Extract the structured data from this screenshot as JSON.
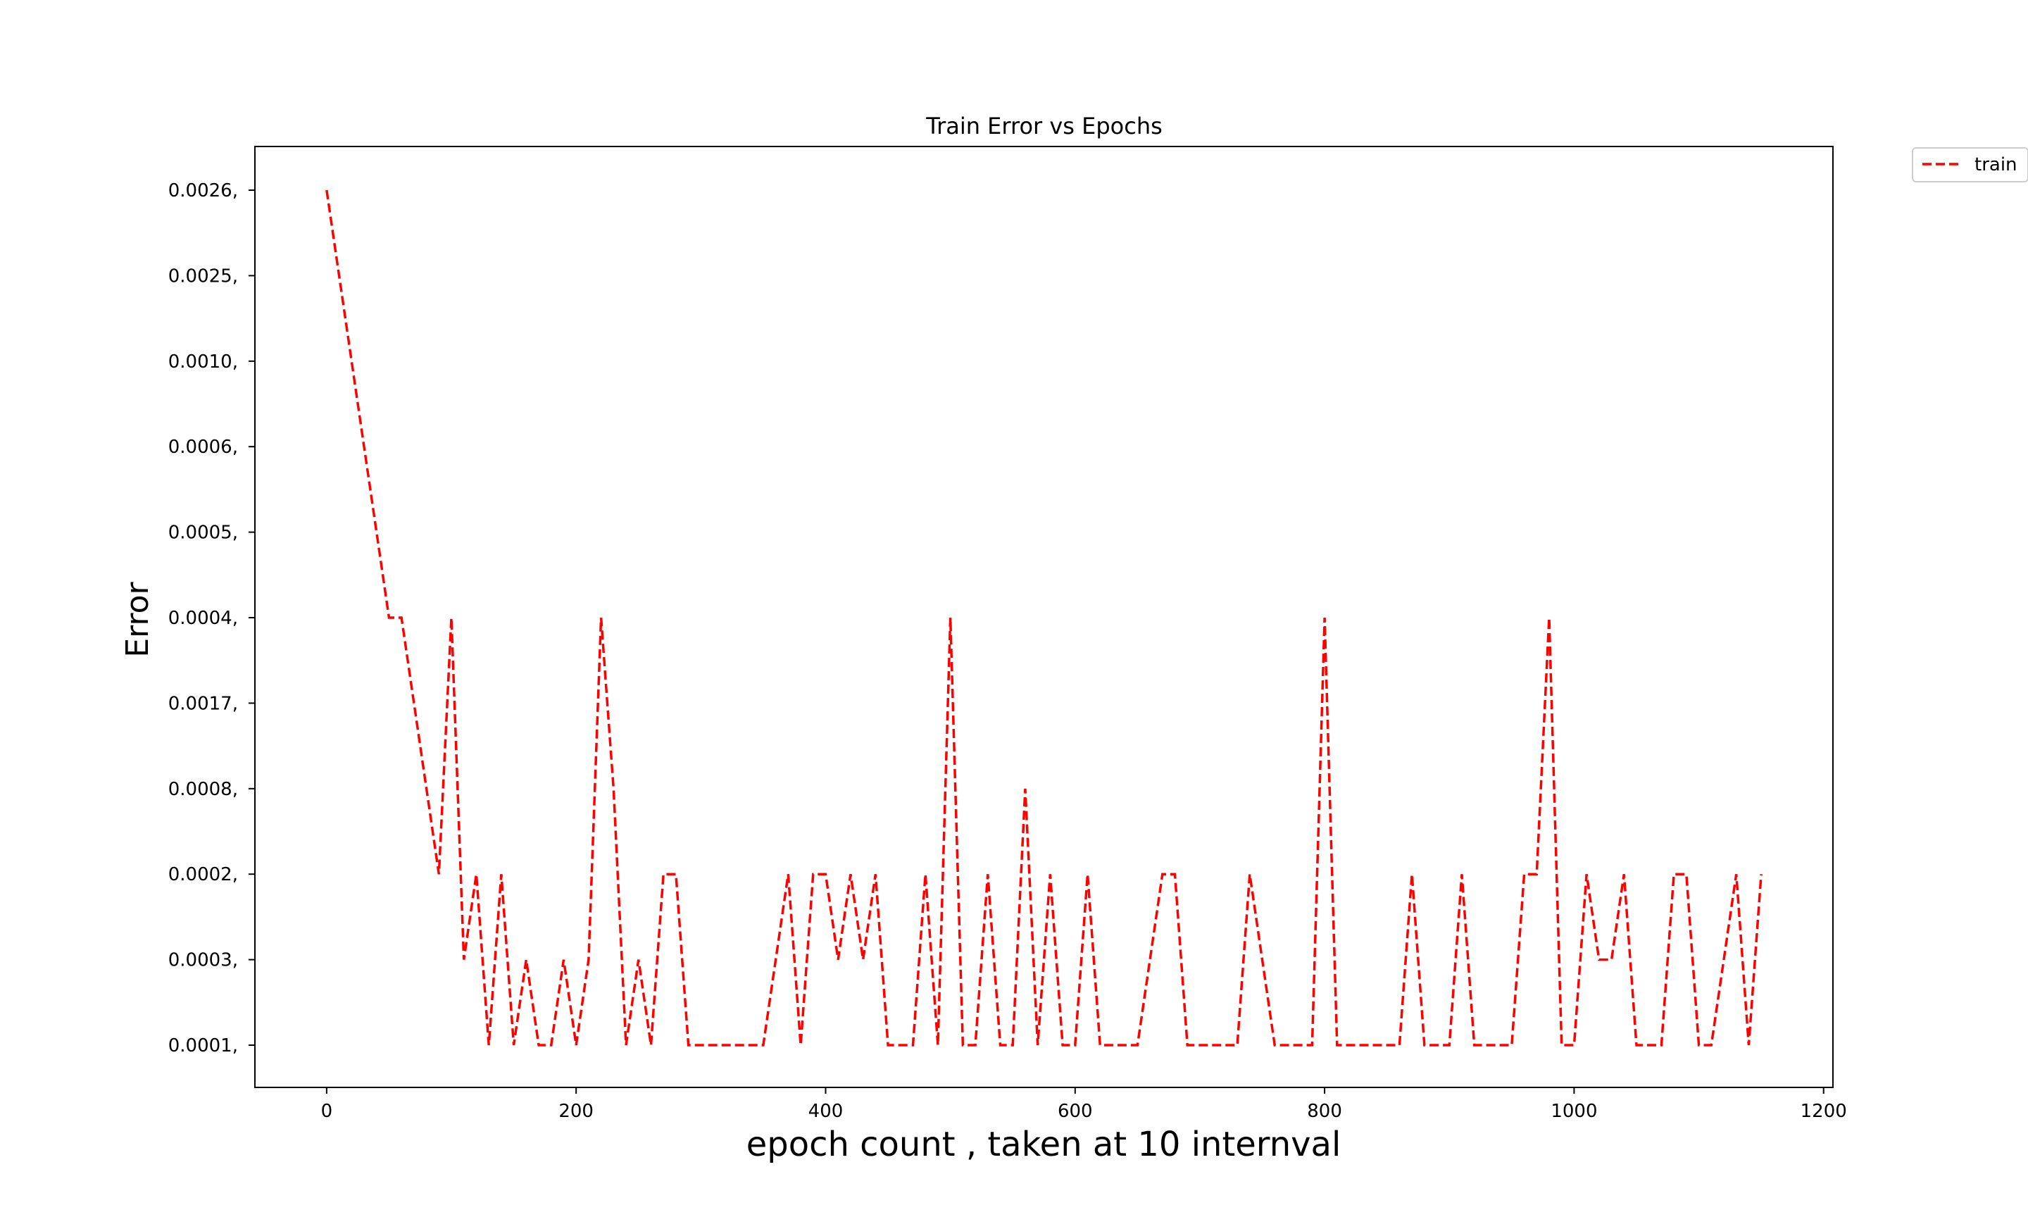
{
  "chart_data": {
    "type": "line",
    "title": "Train Error vs Epochs",
    "xlabel": "epoch count , taken at 10 internval",
    "ylabel": "Error",
    "xlim": [
      -57.5,
      1207.5
    ],
    "x_ticks": [
      0,
      200,
      400,
      600,
      800,
      1000,
      1200
    ],
    "y_categories": [
      "0.0001,",
      "0.0003,",
      "0.0002,",
      "0.0008,",
      "0.0017,",
      "0.0004,",
      "0.0005,",
      "0.0006,",
      "0.0010,",
      "0.0025,",
      "0.0026,"
    ],
    "legend": {
      "position": "upper-right-outside",
      "entries": [
        "train"
      ]
    },
    "colors": {
      "series": "#ff0000",
      "axes": "#000000",
      "legend_border": "#cccccc"
    },
    "grid": false,
    "series": [
      {
        "name": "train",
        "line_style": "dashed",
        "color": "#ff0000",
        "x": [
          0,
          10,
          20,
          30,
          40,
          50,
          60,
          70,
          80,
          90,
          100,
          110,
          120,
          130,
          140,
          150,
          160,
          170,
          180,
          190,
          200,
          210,
          220,
          230,
          240,
          250,
          260,
          270,
          280,
          290,
          300,
          310,
          320,
          330,
          340,
          350,
          360,
          370,
          380,
          390,
          400,
          410,
          420,
          430,
          440,
          450,
          460,
          470,
          480,
          490,
          500,
          510,
          520,
          530,
          540,
          550,
          560,
          570,
          580,
          590,
          600,
          610,
          620,
          630,
          640,
          650,
          660,
          670,
          680,
          690,
          700,
          710,
          720,
          730,
          740,
          750,
          760,
          770,
          780,
          790,
          800,
          810,
          820,
          830,
          840,
          850,
          860,
          870,
          880,
          890,
          900,
          910,
          920,
          930,
          940,
          950,
          960,
          970,
          980,
          990,
          1000,
          1010,
          1020,
          1030,
          1040,
          1050,
          1060,
          1070,
          1080,
          1090,
          1100,
          1110,
          1120,
          1130,
          1140,
          1150
        ],
        "y": [
          "0.0026,",
          "0.0025,",
          "0.0010,",
          "0.0006,",
          "0.0005,",
          "0.0004,",
          "0.0004,",
          "0.0017,",
          "0.0008,",
          "0.0002,",
          "0.0004,",
          "0.0003,",
          "0.0002,",
          "0.0001,",
          "0.0002,",
          "0.0001,",
          "0.0003,",
          "0.0001,",
          "0.0001,",
          "0.0003,",
          "0.0001,",
          "0.0003,",
          "0.0004,",
          "0.0008,",
          "0.0001,",
          "0.0003,",
          "0.0001,",
          "0.0002,",
          "0.0002,",
          "0.0001,",
          "0.0001,",
          "0.0001,",
          "0.0001,",
          "0.0001,",
          "0.0001,",
          "0.0001,",
          "0.0003,",
          "0.0002,",
          "0.0001,",
          "0.0002,",
          "0.0002,",
          "0.0003,",
          "0.0002,",
          "0.0003,",
          "0.0002,",
          "0.0001,",
          "0.0001,",
          "0.0001,",
          "0.0002,",
          "0.0001,",
          "0.0004,",
          "0.0001,",
          "0.0001,",
          "0.0002,",
          "0.0001,",
          "0.0001,",
          "0.0008,",
          "0.0001,",
          "0.0002,",
          "0.0001,",
          "0.0001,",
          "0.0002,",
          "0.0001,",
          "0.0001,",
          "0.0001,",
          "0.0001,",
          "0.0003,",
          "0.0002,",
          "0.0002,",
          "0.0001,",
          "0.0001,",
          "0.0001,",
          "0.0001,",
          "0.0001,",
          "0.0002,",
          "0.0003,",
          "0.0001,",
          "0.0001,",
          "0.0001,",
          "0.0001,",
          "0.0004,",
          "0.0001,",
          "0.0001,",
          "0.0001,",
          "0.0001,",
          "0.0001,",
          "0.0001,",
          "0.0002,",
          "0.0001,",
          "0.0001,",
          "0.0001,",
          "0.0002,",
          "0.0001,",
          "0.0001,",
          "0.0001,",
          "0.0001,",
          "0.0002,",
          "0.0002,",
          "0.0004,",
          "0.0001,",
          "0.0001,",
          "0.0002,",
          "0.0003,",
          "0.0003,",
          "0.0002,",
          "0.0001,",
          "0.0001,",
          "0.0001,",
          "0.0002,",
          "0.0002,",
          "0.0001,",
          "0.0001,",
          "0.0003,",
          "0.0002,",
          "0.0001,",
          "0.0002,"
        ]
      }
    ]
  }
}
